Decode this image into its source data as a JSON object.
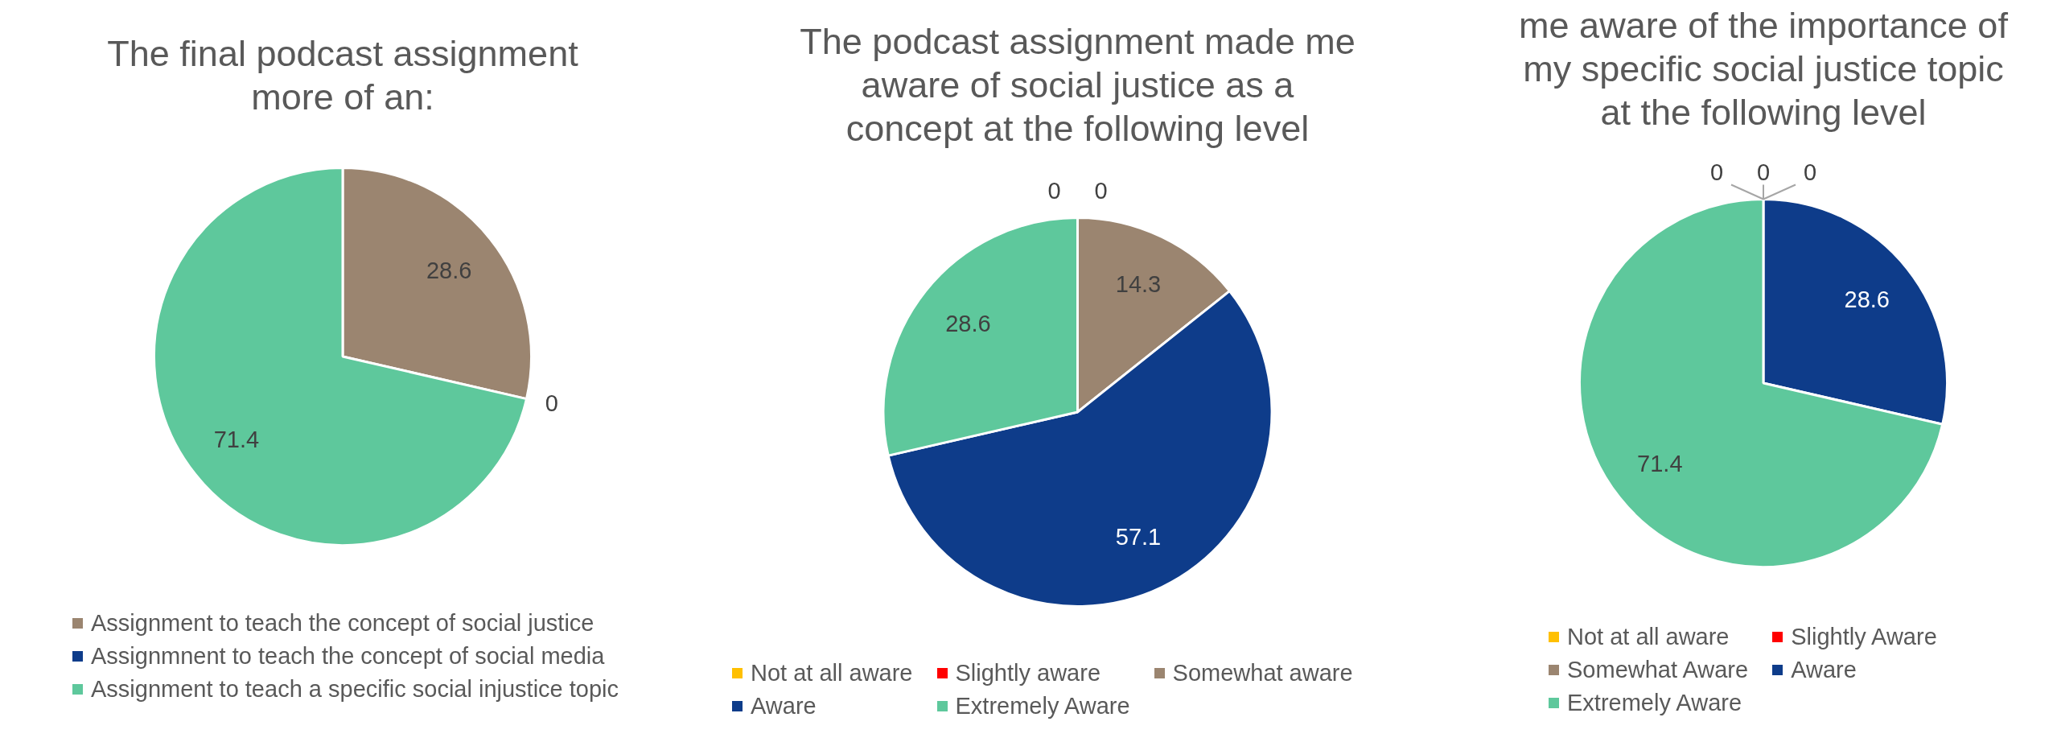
{
  "chart_data": [
    {
      "type": "pie",
      "title": "The final podcast assignment\nmore of an:",
      "categories": [
        "Assignment to teach the concept of social justice",
        "Assignmnent to teach the concept of social media",
        "Assignment to teach a specific social injustice topic"
      ],
      "values": [
        28.6,
        0,
        71.4
      ],
      "value_labels": [
        "28.6",
        "0",
        "71.4"
      ],
      "colors": [
        "#9b8570",
        "#0e3c8a",
        "#5ec89c"
      ],
      "legend": "bottom"
    },
    {
      "type": "pie",
      "title": "The podcast assignment made me\naware of social justice as a\nconcept at the following level",
      "categories": [
        "Not at all aware",
        "Slightly aware",
        "Somewhat aware",
        "Aware",
        "Extremely Aware"
      ],
      "values": [
        0,
        0,
        14.3,
        57.1,
        28.6
      ],
      "value_labels": [
        "0",
        "0",
        "14.3",
        "57.1",
        "28.6"
      ],
      "colors": [
        "#ffc000",
        "#ff0000",
        "#9b8570",
        "#0e3c8a",
        "#5ec89c"
      ],
      "legend": "bottom"
    },
    {
      "type": "pie",
      "title": "me aware of the importance of\nmy specific social justice topic\nat the following level",
      "categories": [
        "Not at all aware",
        "Slightly Aware",
        "Somewhat Aware",
        "Aware",
        "Extremely Aware"
      ],
      "values": [
        0,
        0,
        0,
        28.6,
        71.4
      ],
      "value_labels": [
        "0",
        "0",
        "0",
        "28.6",
        "71.4"
      ],
      "colors": [
        "#ffc000",
        "#ff0000",
        "#9b8570",
        "#0e3c8a",
        "#5ec89c"
      ],
      "legend": "bottom"
    }
  ]
}
